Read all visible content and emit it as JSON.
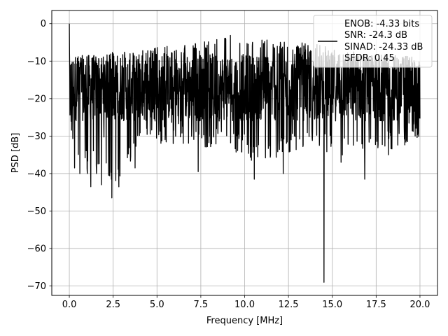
{
  "chart_data": {
    "type": "line",
    "xlabel": "Frequency [MHz]",
    "ylabel": "PSD [dB]",
    "xlim": [
      -1.0,
      21.0
    ],
    "ylim": [
      -72.5,
      3.5
    ],
    "xticks": [
      0.0,
      2.5,
      5.0,
      7.5,
      10.0,
      12.5,
      15.0,
      17.5,
      20.0
    ],
    "xtick_labels": [
      "0.0",
      "2.5",
      "5.0",
      "7.5",
      "10.0",
      "12.5",
      "15.0",
      "17.5",
      "20.0"
    ],
    "yticks": [
      0,
      -10,
      -20,
      -30,
      -40,
      -50,
      -60,
      -70
    ],
    "ytick_labels": [
      "0",
      "−10",
      "−20",
      "−30",
      "−40",
      "−50",
      "−60",
      "−70"
    ],
    "grid": true,
    "legend_position": "top-right",
    "series": [
      {
        "legend_lines": [
          "ENOB: -4.33 bits",
          "SNR: -24.3 dB",
          "SINAD: -24.33 dB",
          "SFDR: 0.45"
        ],
        "color": "#000000",
        "x_range": [
          0.0,
          20.0
        ],
        "floor_band_db": [
          -26,
          -8
        ],
        "envelope": [
          {
            "x": 0.0,
            "upper": 0.0,
            "lower": -29
          },
          {
            "x": 0.5,
            "upper": -8.5,
            "lower": -38
          },
          {
            "x": 1.25,
            "upper": -8.5,
            "lower": -40
          },
          {
            "x": 2.0,
            "upper": -8.5,
            "lower": -36
          },
          {
            "x": 2.5,
            "upper": -7.5,
            "lower": -46.5
          },
          {
            "x": 4.0,
            "upper": -7.0,
            "lower": -33
          },
          {
            "x": 5.5,
            "upper": -6.0,
            "lower": -32
          },
          {
            "x": 7.5,
            "upper": -5.0,
            "lower": -33
          },
          {
            "x": 9.0,
            "upper": -3.0,
            "lower": -33
          },
          {
            "x": 11.0,
            "upper": -4.0,
            "lower": -38
          },
          {
            "x": 13.0,
            "upper": -5.0,
            "lower": -34
          },
          {
            "x": 15.0,
            "upper": -6.0,
            "lower": -35
          },
          {
            "x": 17.0,
            "upper": -8.0,
            "lower": -37
          },
          {
            "x": 20.0,
            "upper": -9.0,
            "lower": -31
          }
        ],
        "notable_dips": [
          {
            "x": 0.3,
            "y": -38.5
          },
          {
            "x": 0.6,
            "y": -40.0
          },
          {
            "x": 1.02,
            "y": -40.0
          },
          {
            "x": 1.22,
            "y": -43.5
          },
          {
            "x": 1.55,
            "y": -40.0
          },
          {
            "x": 1.82,
            "y": -43.0
          },
          {
            "x": 2.42,
            "y": -46.5
          },
          {
            "x": 3.75,
            "y": -38.5
          },
          {
            "x": 7.35,
            "y": -39.5
          },
          {
            "x": 10.55,
            "y": -41.5
          },
          {
            "x": 12.2,
            "y": -40.0
          },
          {
            "x": 14.52,
            "y": -69.0
          },
          {
            "x": 15.5,
            "y": -37.0
          },
          {
            "x": 16.85,
            "y": -41.5
          },
          {
            "x": 18.2,
            "y": -35.0
          }
        ]
      }
    ]
  }
}
